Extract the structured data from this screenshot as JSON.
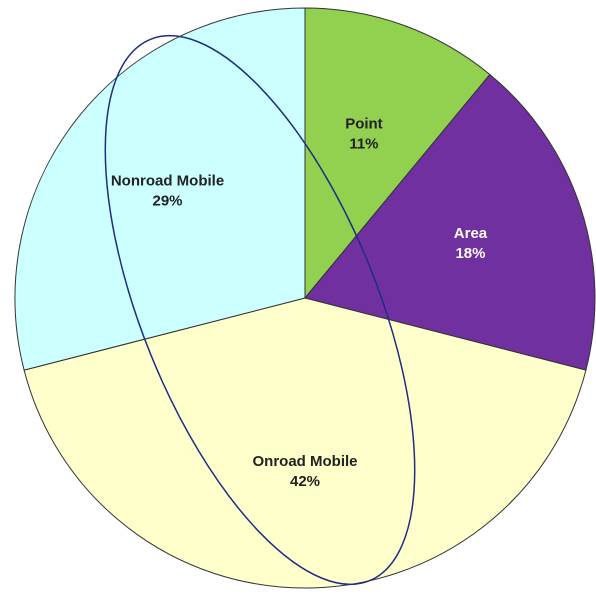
{
  "chart_data": {
    "type": "pie",
    "categories": [
      "Point",
      "Area",
      "Onroad Mobile",
      "Nonroad Mobile"
    ],
    "values": [
      11,
      18,
      42,
      29
    ],
    "value_labels": [
      "11%",
      "18%",
      "42%",
      "29%"
    ],
    "colors": [
      "#92d050",
      "#7030a0",
      "#ffffcc",
      "#ccffff"
    ],
    "label_colors": [
      "#222222",
      "#ffffff",
      "#222222",
      "#222222"
    ]
  }
}
